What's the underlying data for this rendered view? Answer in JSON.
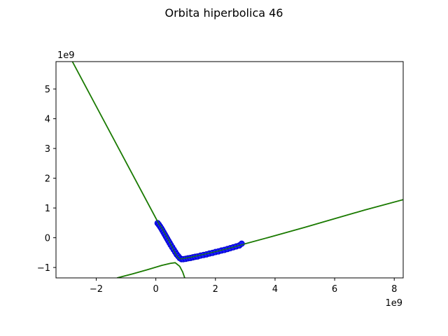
{
  "chart_data": {
    "type": "line",
    "title": "Orbita hiperbolica 46",
    "xlabel": "",
    "ylabel": "",
    "xlim": [
      -3.35,
      8.3
    ],
    "ylim": [
      -1.35,
      5.92
    ],
    "x_ticks": [
      -2,
      0,
      2,
      4,
      6,
      8
    ],
    "y_ticks": [
      -1,
      0,
      1,
      2,
      3,
      4,
      5
    ],
    "x_offset_label": "1e9",
    "y_offset_label": "1e9",
    "grid": false,
    "colors": {
      "curve": "#1a7a00",
      "points": "#1a1aff",
      "point_edge": "#0000cc"
    },
    "series": [
      {
        "type": "line",
        "x": [
          -2.8,
          0.1,
          0.2,
          0.3,
          0.4,
          0.5,
          0.6,
          0.7,
          0.8
        ],
        "y": [
          5.92,
          0.47,
          0.32,
          0.15,
          -0.03,
          -0.22,
          -0.42,
          -0.6,
          -0.72
        ]
      },
      {
        "type": "line",
        "x": [
          0.8,
          1.2,
          1.6,
          2.0,
          2.4,
          2.9,
          4.0,
          5.0,
          6.0,
          7.0,
          8.3
        ],
        "y": [
          -0.72,
          -0.65,
          -0.56,
          -0.47,
          -0.37,
          -0.23,
          0.07,
          0.35,
          0.64,
          0.93,
          1.28
        ]
      },
      {
        "type": "line",
        "x": [
          -1.3,
          -0.8,
          -0.3,
          0.2,
          0.5,
          0.65,
          0.8,
          0.9,
          0.97
        ],
        "y": [
          -1.35,
          -1.22,
          -1.08,
          -0.93,
          -0.86,
          -0.84,
          -0.96,
          -1.15,
          -1.35
        ]
      },
      {
        "type": "scatter",
        "x": [
          0.06,
          0.1,
          0.14,
          0.18,
          0.22,
          0.26,
          0.3,
          0.34,
          0.38,
          0.42,
          0.46,
          0.5,
          0.55,
          0.6,
          0.65,
          0.7,
          0.75,
          0.8,
          0.86,
          0.92,
          1.0,
          1.08,
          1.16,
          1.24,
          1.32,
          1.4,
          1.5,
          1.6,
          1.7,
          1.8,
          1.9,
          2.0,
          2.1,
          2.2,
          2.3,
          2.4,
          2.5,
          2.6,
          2.7,
          2.8,
          2.88
        ],
        "y": [
          0.49,
          0.44,
          0.38,
          0.32,
          0.25,
          0.18,
          0.11,
          0.04,
          -0.03,
          -0.1,
          -0.17,
          -0.24,
          -0.32,
          -0.4,
          -0.48,
          -0.56,
          -0.62,
          -0.68,
          -0.72,
          -0.72,
          -0.71,
          -0.69,
          -0.68,
          -0.66,
          -0.64,
          -0.63,
          -0.6,
          -0.58,
          -0.56,
          -0.53,
          -0.51,
          -0.48,
          -0.46,
          -0.43,
          -0.41,
          -0.38,
          -0.35,
          -0.32,
          -0.29,
          -0.26,
          -0.2
        ]
      }
    ]
  }
}
